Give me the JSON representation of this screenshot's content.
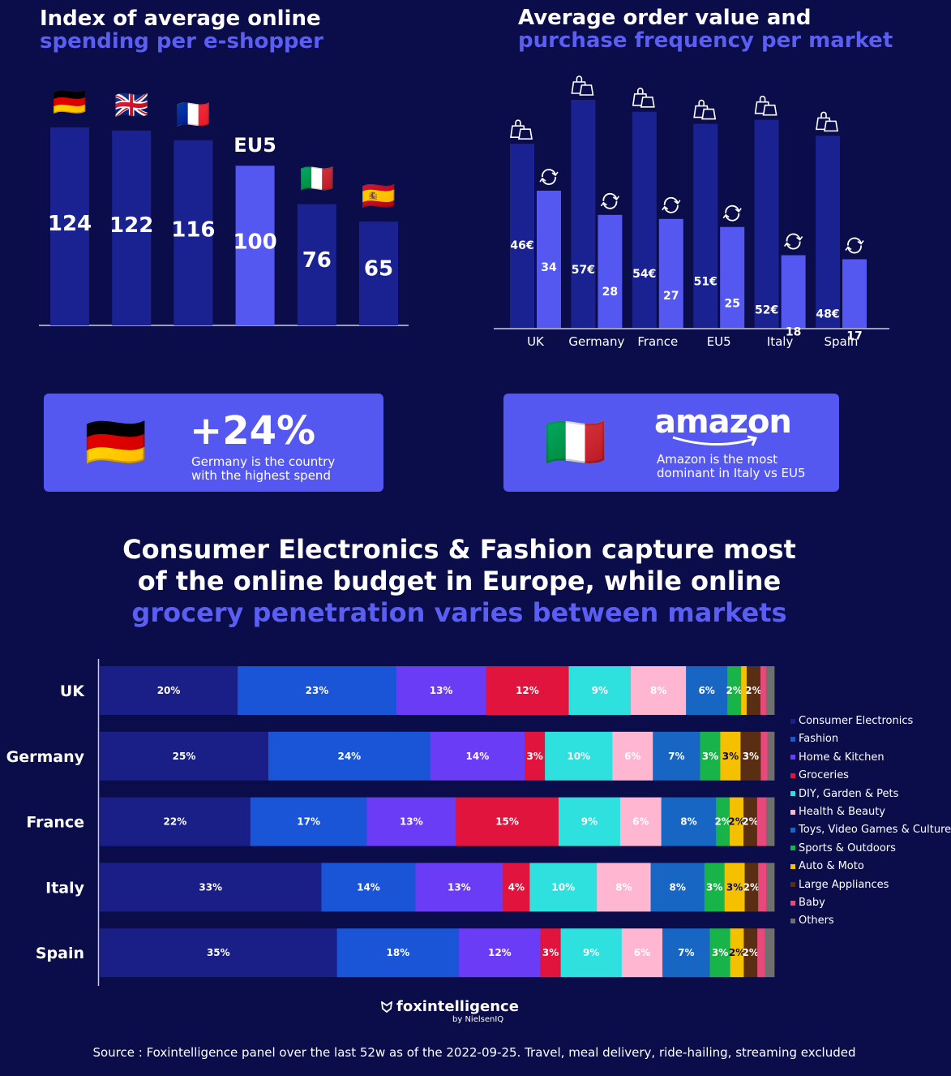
{
  "colors": {
    "background": "#0b0d4a",
    "bar_dark": "#1a2291",
    "bar_light": "#5458f0",
    "accent": "#5b5ef2"
  },
  "left_title": {
    "line1": "Index of average online",
    "line2": "spending per e-shopper"
  },
  "right_title": {
    "line1": "Average order value and",
    "line2": "purchase frequency per market"
  },
  "chart_data": [
    {
      "type": "bar",
      "title": "Index of average online spending per e-shopper",
      "categories": [
        "Germany",
        "UK",
        "France",
        "EU5",
        "Italy",
        "Spain"
      ],
      "labels": [
        "🇩🇪",
        "🇬🇧",
        "🇫🇷",
        "EU5",
        "🇮🇹",
        "🇪🇸"
      ],
      "values": [
        124,
        122,
        116,
        100,
        76,
        65
      ],
      "highlight": "EU5",
      "ylim": [
        0,
        130
      ]
    },
    {
      "type": "bar",
      "title": "Average order value and purchase frequency per market",
      "categories": [
        "UK",
        "Germany",
        "France",
        "EU5",
        "Italy",
        "Spain"
      ],
      "series": [
        {
          "name": "Average order value",
          "values": [
            46,
            57,
            54,
            51,
            52,
            48
          ],
          "labels": [
            "46€",
            "57€",
            "54€",
            "51€",
            "52€",
            "48€"
          ]
        },
        {
          "name": "Purchase frequency",
          "values": [
            34,
            28,
            27,
            25,
            18,
            17
          ],
          "labels": [
            "34",
            "28",
            "27",
            "25",
            "18",
            "17"
          ]
        }
      ],
      "ylim": [
        0,
        60
      ]
    },
    {
      "type": "bar",
      "stacked": true,
      "orientation": "horizontal",
      "title": "Consumer Electronics & Fashion capture most of the online budget in Europe, while online grocery penetration varies between markets",
      "categories": [
        "UK",
        "Germany",
        "France",
        "Italy",
        "Spain"
      ],
      "series": [
        {
          "name": "Consumer Electronics",
          "color": "#1a1f87",
          "values": [
            20,
            25,
            22,
            33,
            35
          ]
        },
        {
          "name": "Fashion",
          "color": "#1a55d8",
          "values": [
            23,
            24,
            17,
            14,
            18
          ]
        },
        {
          "name": "Home & Kitchen",
          "color": "#6a3cf5",
          "values": [
            13,
            14,
            13,
            13,
            12
          ]
        },
        {
          "name": "Groceries",
          "color": "#e0143c",
          "values": [
            12,
            3,
            15,
            4,
            3
          ]
        },
        {
          "name": "DIY, Garden & Pets",
          "color": "#2ee0de",
          "values": [
            9,
            10,
            9,
            10,
            9
          ]
        },
        {
          "name": "Health & Beauty",
          "color": "#ffb6d0",
          "values": [
            8,
            6,
            6,
            8,
            6
          ]
        },
        {
          "name": "Toys, Video Games & Culture",
          "color": "#1766c4",
          "values": [
            6,
            7,
            8,
            8,
            7
          ]
        },
        {
          "name": "Sports & Outdoors",
          "color": "#18b44a",
          "values": [
            2,
            3,
            2,
            3,
            3
          ]
        },
        {
          "name": "Auto & Moto",
          "color": "#f5c000",
          "values": [
            0.8,
            3,
            2,
            3,
            2
          ]
        },
        {
          "name": "Large Appliances",
          "color": "#5a2e12",
          "values": [
            2,
            3,
            2,
            2,
            2
          ]
        },
        {
          "name": "Baby",
          "color": "#e8487a",
          "values": [
            0.8,
            1,
            1.3,
            1.2,
            1.1
          ]
        },
        {
          "name": "Others",
          "color": "#6f6f6f",
          "values": [
            1.2,
            1,
            1.2,
            1.2,
            1.4
          ]
        }
      ],
      "value_labels": [
        [
          "20%",
          "23%",
          "13%",
          "12%",
          "9%",
          "8%",
          "6%",
          "2%",
          "",
          "2%",
          "",
          ""
        ],
        [
          "25%",
          "24%",
          "14%",
          "3%",
          "10%",
          "6%",
          "7%",
          "3%",
          "3%",
          "3%",
          "",
          ""
        ],
        [
          "22%",
          "17%",
          "13%",
          "15%",
          "9%",
          "6%",
          "8%",
          "2%",
          "2%",
          "2%",
          "",
          ""
        ],
        [
          "33%",
          "14%",
          "13%",
          "4%",
          "10%",
          "8%",
          "8%",
          "3%",
          "3%",
          "2%",
          "",
          ""
        ],
        [
          "35%",
          "18%",
          "12%",
          "3%",
          "9%",
          "6%",
          "7%",
          "3%",
          "2%",
          "2%",
          "",
          ""
        ]
      ],
      "xlim": [
        0,
        100
      ]
    }
  ],
  "card_germany": {
    "flag": "🇩🇪",
    "value": "+24%",
    "line1": "Germany is the country",
    "line2": "with the highest spend"
  },
  "card_italy": {
    "flag": "🇮🇹",
    "brand": "amazon",
    "line1": "Amazon is the most",
    "line2": "dominant in Italy vs EU5"
  },
  "mid_title": {
    "line1": "Consumer Electronics & Fashion capture most",
    "line2": "of the online budget in Europe, while online",
    "line3": "grocery penetration varies between markets"
  },
  "logo": {
    "name": "foxintelligence",
    "sub": "by NielsenIQ"
  },
  "source": "Source : Foxintelligence panel over the last 52w as of the 2022-09-25. Travel, meal delivery, ride-hailing, streaming excluded"
}
